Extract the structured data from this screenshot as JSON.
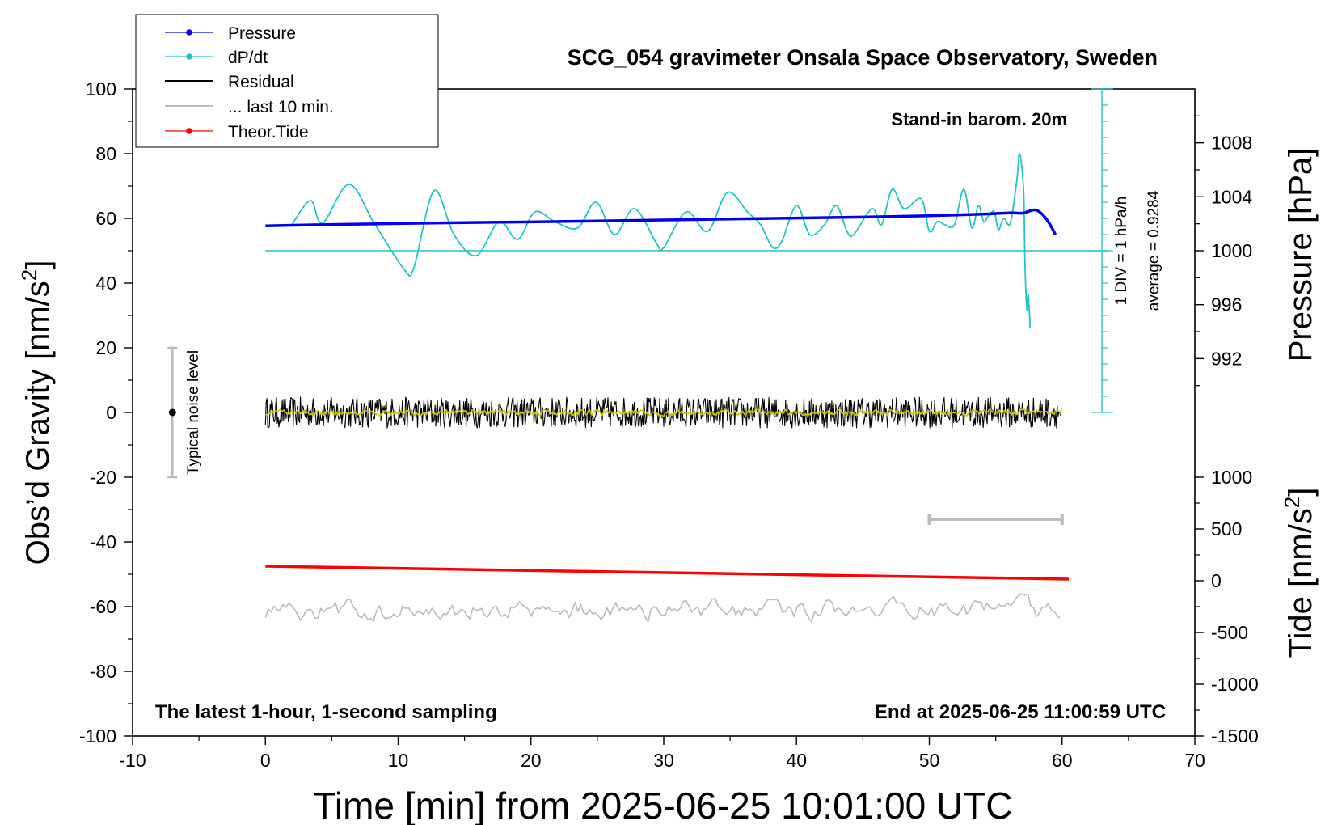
{
  "chart_data": {
    "type": "line",
    "title": "SCG_054 gravimeter Onsala Space Observatory, Sweden",
    "xlabel": "Time [min] from 2025-06-25 10:01:00 UTC",
    "ylabel_left_main": "Obs’d Gravity [nm/s",
    "ylabel_left_sup": "2",
    "ylabel_left_end": "]",
    "ylabel_right_top": "Pressure [hPa]",
    "ylabel_right_bottom_main": "Tide [nm/s",
    "ylabel_right_bottom_sup": "2",
    "ylabel_right_bottom_end": "]",
    "xlim": [
      -10,
      70
    ],
    "ylim": [
      -100,
      100
    ],
    "x_ticks": [
      -10,
      0,
      10,
      20,
      30,
      40,
      50,
      60,
      70
    ],
    "y_ticks": [
      -100,
      -80,
      -60,
      -40,
      -20,
      0,
      20,
      40,
      60,
      80,
      100
    ],
    "pressure_axis": {
      "ticks": [
        992,
        996,
        1000,
        1004,
        1008
      ],
      "ref_gravity": [
        0,
        50
      ],
      "ref_pressure": [
        988,
        1000
      ]
    },
    "tide_axis": {
      "ticks": [
        -1500,
        -1000,
        -500,
        0,
        500,
        1000
      ],
      "ref_gravity": [
        -100,
        -20
      ],
      "ref_tide": [
        -1500,
        1000
      ]
    },
    "legend": {
      "position": "top-left",
      "entries": [
        {
          "label": "Pressure",
          "color": "#0000ee",
          "marker": true
        },
        {
          "label": "dP/dt",
          "color": "#22c4c4",
          "marker": true
        },
        {
          "label": "Residual",
          "color": "#000000",
          "marker": false
        },
        {
          "label": "... last 10 min.",
          "color": "#bbbbbb",
          "marker": false
        },
        {
          "label": "Theor.Tide",
          "color": "#ff0000",
          "marker": true
        }
      ]
    },
    "annotations": {
      "barometer": "Stand-in barom. 20m",
      "sampling": "The latest 1-hour, 1-second sampling",
      "end_time": "End at 2025-06-25 11:00:59 UTC",
      "noise": "Typical noise level",
      "div_scale": "1 DIV = 1 hPa/h",
      "average": "average = 0.9284"
    },
    "noise_bar": {
      "x": -7,
      "center": 0,
      "low": -20,
      "high": 20
    },
    "last10_bar": {
      "x_start": 50,
      "x_end": 60,
      "y": -33
    },
    "dpdt_baseline": {
      "y": 50,
      "x_start": 0,
      "x_end": 63.5
    },
    "dpdt_axis": {
      "x": 63,
      "y_from": 0,
      "y_to": 100,
      "tick_step": 5
    },
    "series": [
      {
        "name": "Pressure",
        "color": "#0000ee",
        "x": [
          0,
          5,
          10,
          15,
          20,
          25,
          30,
          35,
          40,
          45,
          50,
          54,
          56,
          57,
          57.5,
          58,
          58.5,
          59,
          59.5
        ],
        "y": [
          57.7,
          58.1,
          58.4,
          58.7,
          58.9,
          59.2,
          59.5,
          59.8,
          60.1,
          60.4,
          60.8,
          61.3,
          61.7,
          61.6,
          62.2,
          62.6,
          61.3,
          58.7,
          55.0
        ]
      },
      {
        "name": "dP/dt",
        "color": "#22c4c4",
        "x": [
          2,
          3.4,
          4.3,
          6.3,
          8.2,
          10.5,
          11.2,
          12.7,
          14.2,
          15.9,
          17.6,
          19,
          20.3,
          21.8,
          23.5,
          24.9,
          26.3,
          27.8,
          29.5,
          30,
          31.7,
          33.3,
          34.8,
          36.3,
          37.3,
          38.2,
          38.9,
          40,
          41,
          42.1,
          43,
          43.8,
          44.3,
          45.7,
          46.4,
          47.2,
          48.1,
          49.4,
          50,
          50.6,
          51.2,
          51.9,
          52.6,
          53.2,
          53.7,
          54.1,
          54.5,
          54.9,
          55.2,
          55.6,
          56.1,
          56.6,
          56.8,
          57.1,
          57.2,
          57.35,
          57.45,
          57.6
        ],
        "y": [
          58,
          65.5,
          58.5,
          70.5,
          58.5,
          44,
          45,
          68.5,
          55,
          48.5,
          59,
          53.5,
          62,
          59,
          57,
          65,
          55,
          63,
          52,
          51,
          62,
          56,
          68,
          62,
          58,
          51,
          53,
          64,
          55,
          58,
          64,
          56,
          55,
          63,
          58,
          69,
          63,
          66,
          56,
          59,
          58,
          58,
          69,
          57,
          64,
          59,
          61,
          62,
          56.5,
          60,
          58.5,
          72,
          80,
          69,
          47,
          32,
          36.5,
          26
        ]
      },
      {
        "name": "Residual",
        "color": "#000000",
        "x_range": [
          0,
          60
        ],
        "mean": 0,
        "amplitude": 4.8
      },
      {
        "name": "Residual (smoothed)",
        "color": "#c8c800",
        "x_range": [
          0,
          60
        ],
        "mean": 0,
        "amplitude": 1.5
      },
      {
        "name": "... last 10 min.",
        "color": "#bbbbbb",
        "x_range": [
          0,
          60
        ],
        "mean": -61,
        "amplitude": 6
      },
      {
        "name": "Theor.Tide",
        "color": "#ff0000",
        "x": [
          0,
          60.5
        ],
        "y": [
          -47.5,
          -51.5
        ]
      }
    ]
  }
}
